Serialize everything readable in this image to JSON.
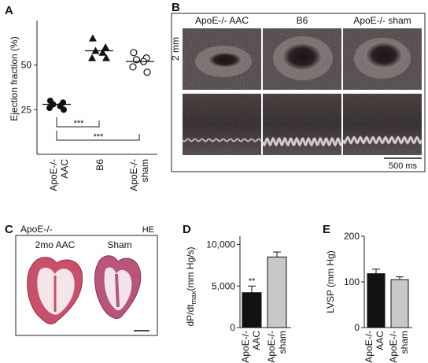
{
  "panels": {
    "A": {
      "letter": "A",
      "ylabel": "Ejection fraction (%)",
      "yticks": [
        "25",
        "50"
      ],
      "groups": [
        {
          "label_line1": "ApoE-/-",
          "label_line2": "AAC"
        },
        {
          "label_line1": "B6",
          "label_line2": ""
        },
        {
          "label_line1": "ApoE-/-",
          "label_line2": "sham"
        }
      ],
      "significance": [
        "***",
        "***"
      ]
    },
    "B": {
      "letter": "B",
      "image_labels": [
        "ApoE-/- AAC",
        "B6",
        "ApoE-/- sham"
      ],
      "scale_vertical": "2 mm",
      "scale_horizontal": "500 ms"
    },
    "C": {
      "letter": "C",
      "genotype": "ApoE-/-",
      "stain": "HE",
      "image_labels": [
        "2mo AAC",
        "Sham"
      ]
    },
    "D": {
      "letter": "D",
      "ylabel_main": "dP/dt",
      "ylabel_sub": "max",
      "ylabel_unit": "(mm Hg/s)",
      "yticks": [
        "0",
        "5,000",
        "10,000"
      ],
      "categories": [
        {
          "label_line1": "ApoE-/-",
          "label_line2": "AAC"
        },
        {
          "label_line1": "ApoE-/-",
          "label_line2": "sham"
        }
      ],
      "significance": "**"
    },
    "E": {
      "letter": "E",
      "ylabel": "LVSP (mm Hg)",
      "yticks": [
        "0",
        "100",
        "200"
      ],
      "categories": [
        {
          "label_line1": "ApoE-/-",
          "label_line2": "AAC"
        },
        {
          "label_line1": "ApoE-/-",
          "label_line2": "sham"
        }
      ]
    }
  },
  "chart_data": [
    {
      "type": "scatter",
      "panel": "A",
      "ylabel": "Ejection fraction (%)",
      "ylim": [
        0,
        75
      ],
      "categories": [
        "ApoE-/- AAC",
        "B6",
        "ApoE-/- sham"
      ],
      "series": [
        {
          "category": "ApoE-/- AAC",
          "marker": "filled-circle",
          "values": [
            30,
            29,
            28,
            27,
            26,
            25
          ],
          "mean": 28
        },
        {
          "category": "B6",
          "marker": "filled-triangle",
          "values": [
            65,
            60,
            58,
            57,
            54,
            54
          ],
          "mean": 58
        },
        {
          "category": "ApoE-/- sham",
          "marker": "open-circle",
          "values": [
            57,
            54,
            53,
            52,
            49,
            46
          ],
          "mean": 52
        }
      ]
    },
    {
      "type": "bar",
      "panel": "D",
      "categories": [
        "ApoE-/- AAC",
        "ApoE-/- sham"
      ],
      "values": [
        4200,
        8500
      ],
      "errors": [
        800,
        600
      ],
      "colors": [
        "#111111",
        "#c8c8c8"
      ],
      "ylim": [
        0,
        11000
      ]
    },
    {
      "type": "bar",
      "panel": "E",
      "ylabel": "LVSP (mm Hg)",
      "categories": [
        "ApoE-/- AAC",
        "ApoE-/- sham"
      ],
      "values": [
        118,
        105
      ],
      "errors": [
        10,
        6
      ],
      "colors": [
        "#111111",
        "#c8c8c8"
      ],
      "ylim": [
        0,
        200
      ]
    }
  ]
}
